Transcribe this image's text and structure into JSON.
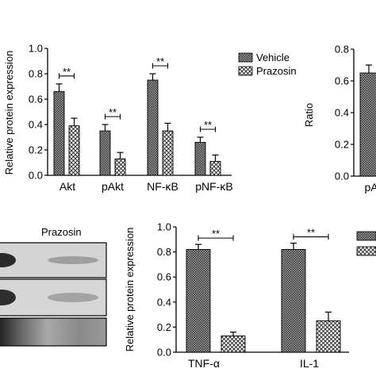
{
  "colors": {
    "vehicle_fill": "#8a8a8a",
    "prazosin_fill": "#ffffff",
    "axis": "#000000",
    "blot_band": "#2c2c2c"
  },
  "blot": {
    "label": "Prazosin"
  },
  "sig_label": "**",
  "chart_data": [
    {
      "type": "bar",
      "ylabel": "Relative protein expression",
      "ylim": [
        0,
        1.0
      ],
      "yticks": [
        "0.0",
        "0.2",
        "0.4",
        "0.6",
        "0.8",
        "1.0"
      ],
      "categories": [
        "Akt",
        "pAkt",
        "NF-κB",
        "pNF-κB"
      ],
      "legend": [
        "Vehicle",
        "Prazosin"
      ],
      "legend_position": "top-right",
      "series": [
        {
          "name": "Vehicle",
          "values": [
            0.66,
            0.35,
            0.75,
            0.26
          ],
          "errors": [
            0.06,
            0.05,
            0.05,
            0.04
          ]
        },
        {
          "name": "Prazosin",
          "values": [
            0.39,
            0.13,
            0.35,
            0.11
          ],
          "errors": [
            0.06,
            0.05,
            0.06,
            0.05
          ]
        }
      ],
      "significance": [
        "**",
        "**",
        "**",
        "**"
      ]
    },
    {
      "type": "bar",
      "ylabel": "Ratio",
      "ylim": [
        0,
        0.8
      ],
      "yticks": [
        "0.0",
        "0.2",
        "0.4",
        "0.6",
        "0.8"
      ],
      "categories": [
        "pA"
      ],
      "series": [
        {
          "values": [
            0.65
          ],
          "errors": [
            0.05
          ]
        }
      ]
    },
    {
      "type": "bar",
      "ylabel": "Relative protein expression",
      "ylim": [
        0,
        1.0
      ],
      "yticks": [
        "0.0",
        "0.2",
        "0.4",
        "0.6",
        "0.8",
        "1.0"
      ],
      "categories": [
        "TNF-α",
        "IL-1"
      ],
      "series": [
        {
          "values": [
            0.82,
            0.82
          ],
          "errors": [
            0.04,
            0.05
          ]
        },
        {
          "values": [
            0.13,
            0.25
          ],
          "errors": [
            0.03,
            0.07
          ]
        }
      ],
      "significance": [
        "**",
        "**"
      ]
    }
  ]
}
